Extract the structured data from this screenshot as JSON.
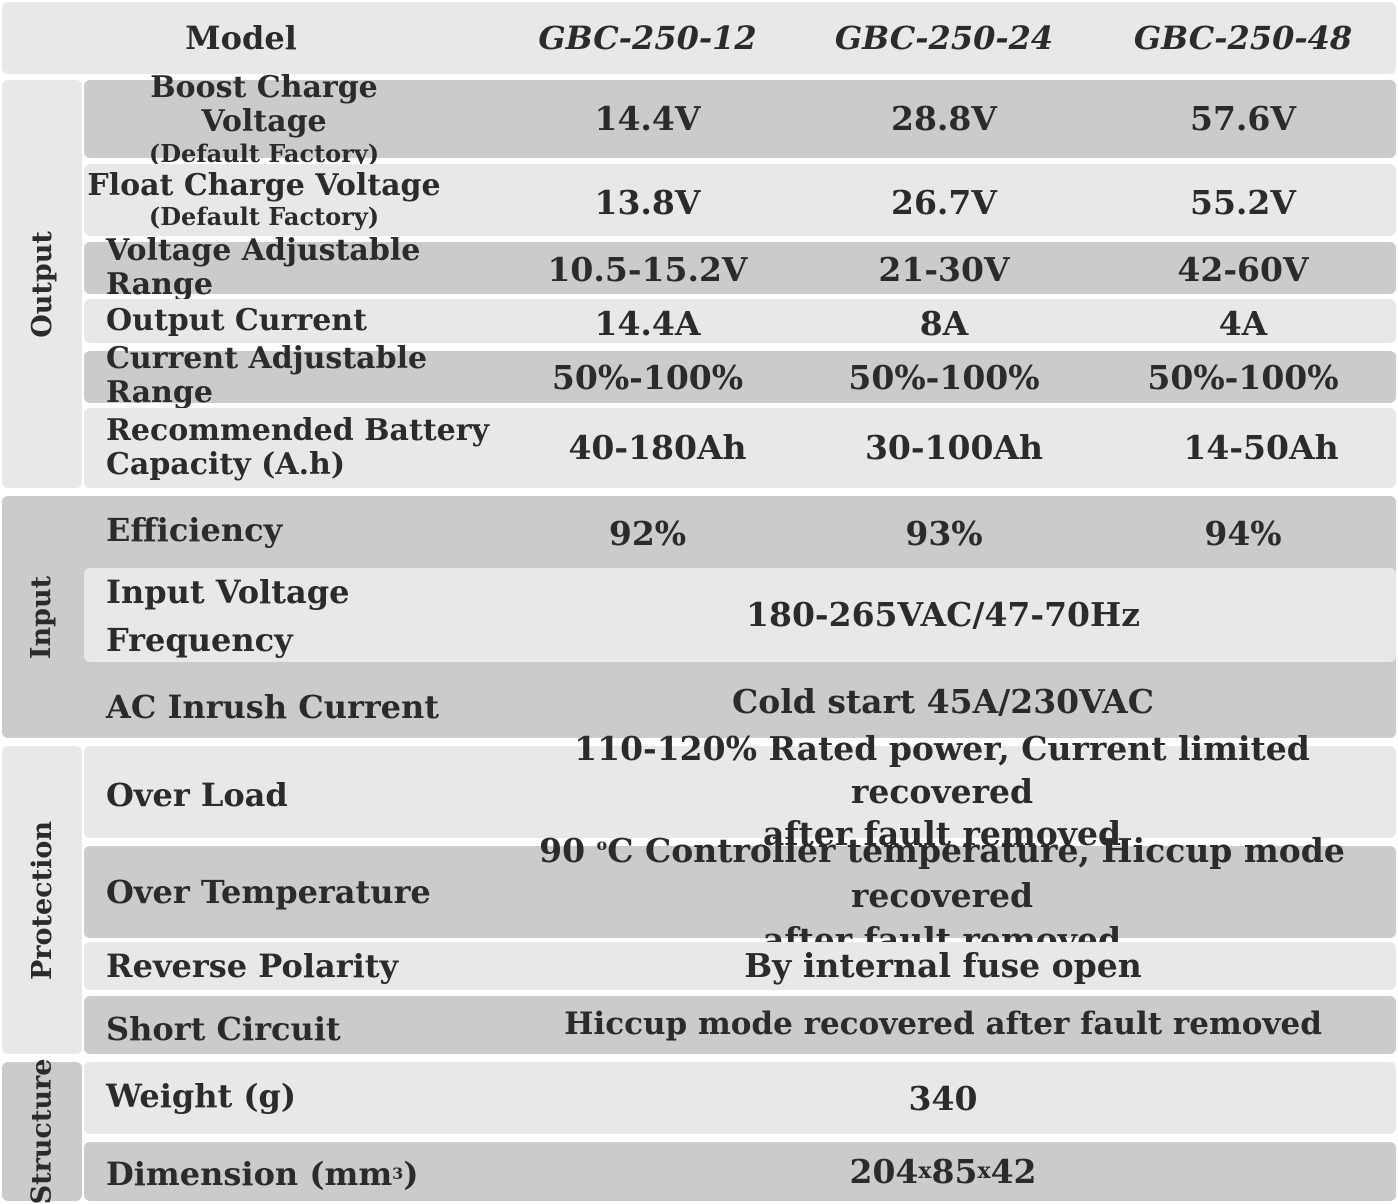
{
  "header": {
    "model_label": "Model",
    "models": [
      "GBC-250-12",
      "GBC-250-24",
      "GBC-250-48"
    ]
  },
  "sections": {
    "output": "Output",
    "input": "Input",
    "protection": "Protection",
    "structure": "Structure"
  },
  "rows": {
    "boost": {
      "label": "Boost Charge Voltage",
      "sub": "(Default Factory)",
      "values": [
        "14.4V",
        "28.8V",
        "57.6V"
      ]
    },
    "float": {
      "label": "Float Charge Voltage",
      "sub": "(Default Factory)",
      "values": [
        "13.8V",
        "26.7V",
        "55.2V"
      ]
    },
    "vrange": {
      "label": "Voltage Adjustable Range",
      "values": [
        "10.5-15.2V",
        "21-30V",
        "42-60V"
      ]
    },
    "ocurrent": {
      "label": "Output Current",
      "values": [
        "14.4A",
        "8A",
        "4A"
      ]
    },
    "crange": {
      "label": "Current Adjustable Range",
      "values": [
        "50%-100%",
        "50%-100%",
        "50%-100%"
      ]
    },
    "battery": {
      "label_1": "Recommended Battery",
      "label_2": "Capacity (A.h)",
      "values": [
        "40-180Ah",
        "30-100Ah",
        "14-50Ah"
      ]
    },
    "efficiency": {
      "label": "Efficiency",
      "values": [
        "92%",
        "93%",
        "94%"
      ]
    },
    "ivf": {
      "label_1": "Input Voltage",
      "label_2": "Frequency",
      "value": "180-265VAC/47-70Hz"
    },
    "inrush": {
      "label": "AC Inrush Current",
      "value": "Cold start 45A/230VAC"
    },
    "overload": {
      "label": "Over Load",
      "value_1": "110-120% Rated power, Current limited recovered",
      "value_2": "after fault removed"
    },
    "overtemp": {
      "label": "Over Temperature",
      "value_num": "90 ",
      "value_deg": "o",
      "value_rest": "C Controller temperature, Hiccup mode recovered",
      "value_2": "after fault removed"
    },
    "reverse": {
      "label": "Reverse Polarity",
      "value": "By internal fuse open"
    },
    "short": {
      "label": "Short Circuit",
      "value": "Hiccup mode recovered after fault removed"
    },
    "weight": {
      "label": "Weight (g)",
      "value": "340"
    },
    "dimension": {
      "label": "Dimension (mm",
      "label_sup": "3",
      "label_end": ")",
      "value_a": "204",
      "value_x1": "x",
      "value_b": "85",
      "value_x2": "x",
      "value_c": "42"
    }
  }
}
